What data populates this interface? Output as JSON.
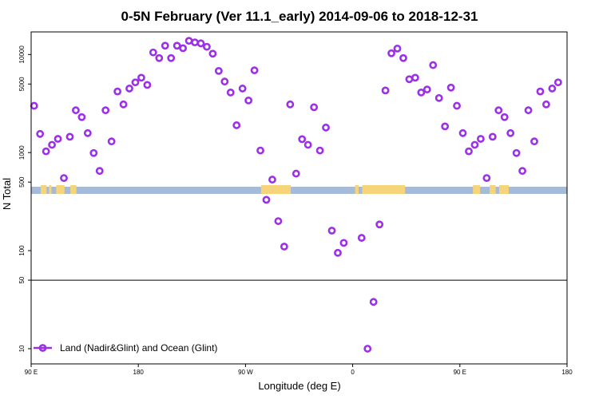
{
  "chart_data": {
    "type": "scatter",
    "title": "0-5N February (Ver 11.1_early)   2014-09-06 to 2018-12-31",
    "xlabel": "Longitude (deg E)",
    "ylabel": "N Total",
    "y_scale": "log",
    "ylim": [
      7,
      17000
    ],
    "x_ticks": [
      {
        "lon": 90,
        "label": "90 E"
      },
      {
        "lon": 180,
        "label": "180"
      },
      {
        "lon": 270,
        "label": "90 W"
      },
      {
        "lon": 360,
        "label": "0"
      },
      {
        "lon": 450,
        "label": "90 E"
      },
      {
        "lon": 540,
        "label": "180"
      }
    ],
    "xlim": [
      90,
      540
    ],
    "y_ticks": [
      {
        "value": 10,
        "label": "10"
      },
      {
        "value": 50,
        "label": "50"
      },
      {
        "value": 100,
        "label": "100"
      },
      {
        "value": 500,
        "label": "500"
      },
      {
        "value": 1000,
        "label": "1000"
      },
      {
        "value": 5000,
        "label": "5000"
      },
      {
        "value": 10000,
        "label": "10000"
      }
    ],
    "reference_line_y": 50,
    "marker_color": "#9b30e8",
    "ocean_color": "#a6bbd8",
    "land_color": "#f6d57a",
    "legend": {
      "position": "bottom-left",
      "label": "Land (Nadir&Glint) and Ocean (Glint)"
    },
    "series": [
      {
        "points": [
          [
            92.5,
            3000
          ],
          [
            97.5,
            1550
          ],
          [
            102.5,
            1030
          ],
          [
            107.5,
            1200
          ],
          [
            112.5,
            1380
          ],
          [
            117.5,
            550
          ],
          [
            122.5,
            1450
          ],
          [
            127.5,
            2700
          ],
          [
            132.5,
            2300
          ],
          [
            137.5,
            1580
          ],
          [
            142.5,
            990
          ],
          [
            147.5,
            650
          ],
          [
            152.5,
            2700
          ],
          [
            157.5,
            1300
          ],
          [
            162.5,
            4200
          ],
          [
            167.5,
            3100
          ],
          [
            172.5,
            4500
          ],
          [
            177.5,
            5200
          ],
          [
            182.5,
            5800
          ],
          [
            187.5,
            4900
          ],
          [
            192.5,
            10500
          ],
          [
            197.5,
            9200
          ],
          [
            202.5,
            12300
          ],
          [
            207.5,
            9200
          ],
          [
            212.5,
            12300
          ],
          [
            217.5,
            11600
          ],
          [
            222.5,
            13800
          ],
          [
            227.5,
            13300
          ],
          [
            232.5,
            13000
          ],
          [
            237.5,
            12000
          ],
          [
            242.5,
            10200
          ],
          [
            247.5,
            6800
          ],
          [
            252.5,
            5300
          ],
          [
            257.5,
            4100
          ],
          [
            262.5,
            1900
          ],
          [
            267.5,
            4500
          ],
          [
            272.5,
            3400
          ],
          [
            277.5,
            6900
          ],
          [
            282.5,
            1050
          ],
          [
            287.5,
            330
          ],
          [
            292.5,
            530
          ],
          [
            297.5,
            200
          ],
          [
            302.5,
            110
          ],
          [
            307.5,
            3100
          ],
          [
            312.5,
            610
          ],
          [
            317.5,
            1370
          ],
          [
            322.5,
            1200
          ],
          [
            327.5,
            2900
          ],
          [
            332.5,
            1050
          ],
          [
            337.5,
            1800
          ],
          [
            342.5,
            160
          ],
          [
            347.5,
            95
          ],
          [
            352.5,
            120
          ],
          [
            367.5,
            135
          ],
          [
            372.5,
            10
          ],
          [
            377.5,
            30
          ],
          [
            382.5,
            185
          ],
          [
            387.5,
            4300
          ],
          [
            392.5,
            10300
          ],
          [
            397.5,
            11500
          ],
          [
            402.5,
            9200
          ],
          [
            407.5,
            5600
          ],
          [
            412.5,
            5800
          ],
          [
            417.5,
            4100
          ],
          [
            422.5,
            4400
          ],
          [
            427.5,
            7800
          ],
          [
            432.5,
            3600
          ],
          [
            437.5,
            1850
          ],
          [
            442.5,
            4600
          ],
          [
            447.5,
            3000
          ],
          [
            452.5,
            1580
          ],
          [
            457.5,
            1030
          ],
          [
            462.5,
            1200
          ],
          [
            467.5,
            1380
          ],
          [
            472.5,
            550
          ],
          [
            477.5,
            1450
          ],
          [
            482.5,
            2700
          ],
          [
            487.5,
            2300
          ],
          [
            492.5,
            1580
          ],
          [
            497.5,
            990
          ],
          [
            502.5,
            650
          ],
          [
            507.5,
            2700
          ],
          [
            512.5,
            1300
          ],
          [
            517.5,
            4200
          ],
          [
            522.5,
            3100
          ],
          [
            527.5,
            4500
          ],
          [
            532.5,
            5200
          ]
        ]
      }
    ],
    "land_spans": [
      [
        98,
        103
      ],
      [
        105,
        107
      ],
      [
        111,
        118
      ],
      [
        123,
        128
      ],
      [
        283,
        308
      ],
      [
        362,
        365
      ],
      [
        368,
        404
      ],
      [
        461,
        467
      ],
      [
        475,
        480
      ],
      [
        483,
        491
      ]
    ]
  }
}
